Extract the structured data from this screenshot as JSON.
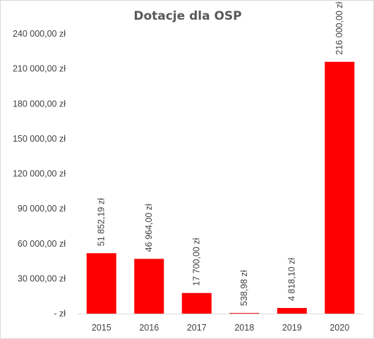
{
  "chart_data": {
    "type": "bar",
    "title": "Dotacje dla OSP",
    "categories": [
      "2015",
      "2016",
      "2017",
      "2018",
      "2019",
      "2020"
    ],
    "values": [
      51852.19,
      46964.0,
      17700.0,
      538.98,
      4818.1,
      216000.0
    ],
    "data_labels": [
      "51 852,19 zł",
      "46 964,00 zł",
      "17 700,00 zł",
      "538,98 zł",
      "4 818,10 zł",
      "216 000,00 zł"
    ],
    "yticks": [
      0,
      30000,
      60000,
      90000,
      120000,
      150000,
      180000,
      210000,
      240000
    ],
    "ytick_labels": [
      "-  zł",
      "30 000,00 zł",
      "60 000,00 zł",
      "90 000,00 zł",
      "120 000,00 zł",
      "150 000,00 zł",
      "180 000,00 zł",
      "210 000,00 zł",
      "240 000,00 zł"
    ],
    "ylim": [
      0,
      240000
    ],
    "xlabel": "",
    "ylabel": "",
    "grid": false,
    "legend": "none",
    "bar_color": "#ff0000"
  }
}
